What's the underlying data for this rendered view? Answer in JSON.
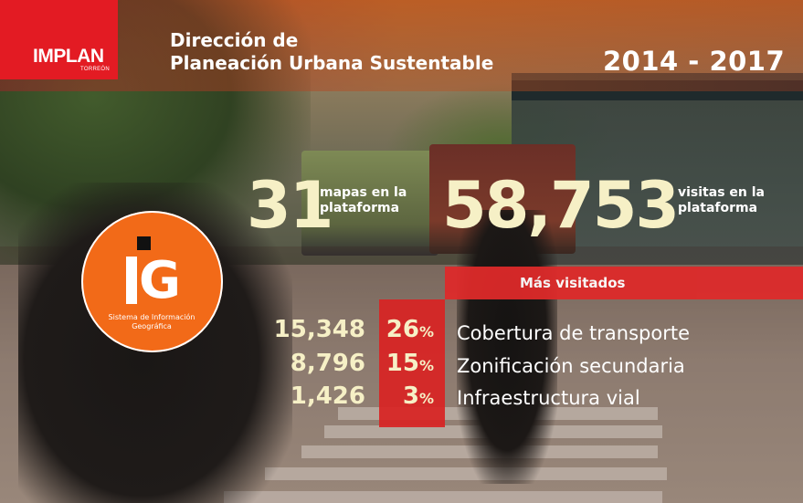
{
  "header": {
    "logo": "IMPLAN",
    "logo_sub": "TORREÓN",
    "title_line1": "Dirección de",
    "title_line2": "Planeación Urbana Sustentable",
    "years": "2014 - 2017"
  },
  "stats": {
    "maps_count": "31",
    "maps_label_line1": "mapas en la",
    "maps_label_line2": "plataforma",
    "visits_count": "58,753",
    "visits_label_line1": "visitas en la",
    "visits_label_line2": "plataforma"
  },
  "sig": {
    "caption_line1": "Sistema de Información",
    "caption_line2": "Geográfica"
  },
  "most_visited": {
    "title": "Más visitados",
    "rows": [
      {
        "count": "15,348",
        "pct": "26",
        "name": "Cobertura de transporte"
      },
      {
        "count": "8,796",
        "pct": "15",
        "name": "Zonificación secundaria"
      },
      {
        "count": "1,426",
        "pct": "3",
        "name": "Infraestructura vial"
      }
    ],
    "pct_symbol": "%"
  },
  "colors": {
    "brand_red": "#e31b23",
    "sig_orange": "#f26a18",
    "number_cream": "#f6f0c6"
  }
}
